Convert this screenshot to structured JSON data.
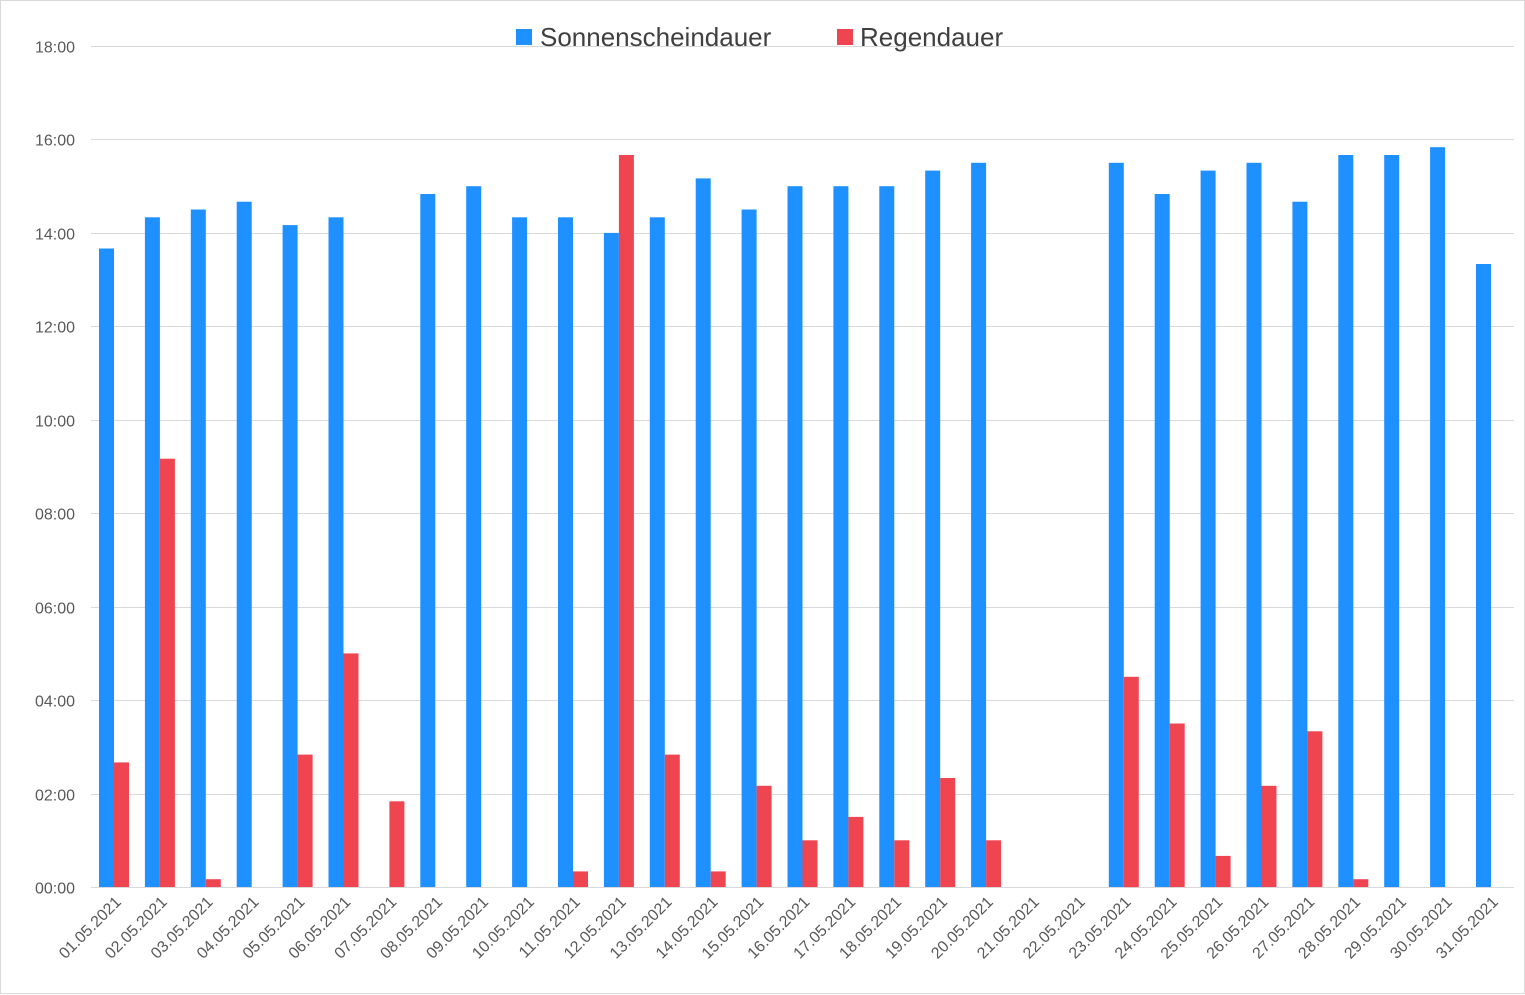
{
  "chart_data": {
    "type": "bar",
    "title": "",
    "xlabel": "",
    "ylabel": "",
    "categories": [
      "01.05.2021",
      "02.05.2021",
      "03.05.2021",
      "04.05.2021",
      "05.05.2021",
      "06.05.2021",
      "07.05.2021",
      "08.05.2021",
      "09.05.2021",
      "10.05.2021",
      "11.05.2021",
      "12.05.2021",
      "13.05.2021",
      "14.05.2021",
      "15.05.2021",
      "16.05.2021",
      "17.05.2021",
      "18.05.2021",
      "19.05.2021",
      "20.05.2021",
      "21.05.2021",
      "22.05.2021",
      "23.05.2021",
      "24.05.2021",
      "25.05.2021",
      "26.05.2021",
      "27.05.2021",
      "28.05.2021",
      "29.05.2021",
      "30.05.2021",
      "31.05.2021"
    ],
    "ylim": [
      "00:00",
      "18:00"
    ],
    "yticks": [
      "00:00",
      "02:00",
      "04:00",
      "06:00",
      "08:00",
      "10:00",
      "12:00",
      "14:00",
      "16:00",
      "18:00"
    ],
    "grid": true,
    "legend_position": "top-center",
    "series": [
      {
        "name": "Sonnenscheindauer",
        "color": "#1e90ff",
        "values": [
          "13:40",
          "14:20",
          "14:30",
          "14:40",
          "14:10",
          "14:20",
          null,
          "14:50",
          "15:00",
          "14:20",
          "14:20",
          "14:00",
          "14:20",
          "15:10",
          "14:30",
          "15:00",
          "15:00",
          "15:00",
          "15:20",
          "15:30",
          null,
          null,
          "15:30",
          "14:50",
          "15:20",
          "15:30",
          "14:40",
          "15:40",
          "15:40",
          "15:50",
          "13:20"
        ]
      },
      {
        "name": "Regendauer",
        "color": "#ef4550",
        "values": [
          "02:40",
          "09:10",
          "00:10",
          null,
          "02:50",
          "05:00",
          "01:50",
          null,
          null,
          null,
          "00:20",
          "15:40",
          "02:50",
          "00:20",
          "02:10",
          "01:00",
          "01:30",
          "01:00",
          "02:20",
          "01:00",
          null,
          null,
          "04:30",
          "03:30",
          "00:40",
          "02:10",
          "03:20",
          "00:10",
          null,
          null,
          null
        ]
      }
    ]
  }
}
